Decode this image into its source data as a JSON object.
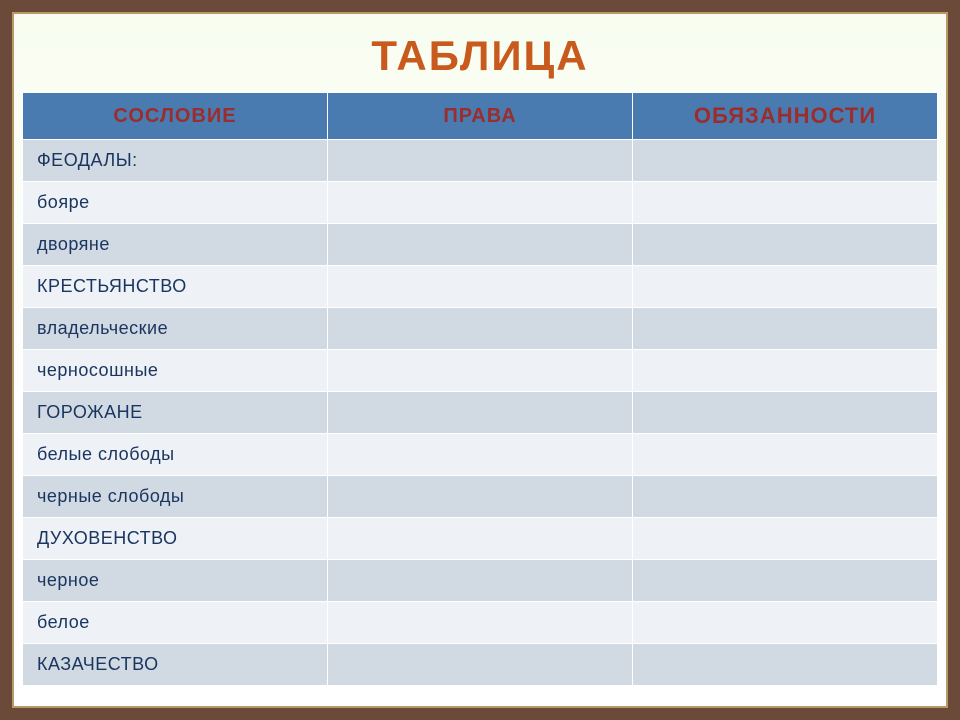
{
  "title": {
    "text": "ТАБЛИЦА",
    "color": "#c85a1e",
    "fontsize": 42
  },
  "table": {
    "header_bg": "#4a7bb0",
    "header_color_normal": "#9b2d2d",
    "header_color_emphasis": "#9b2d2d",
    "row_odd_bg": "#d1d9e3",
    "row_even_bg": "#eef1f5",
    "text_color": "#1a3660",
    "columns": [
      {
        "label": "СОСЛОВИЕ",
        "emphasis": false
      },
      {
        "label": "ПРАВА",
        "emphasis": false
      },
      {
        "label": "ОБЯЗАННОСТИ",
        "emphasis": true
      }
    ],
    "rows": [
      {
        "cells": [
          "ФЕОДАЛЫ:",
          "",
          ""
        ]
      },
      {
        "cells": [
          "бояре",
          "",
          ""
        ]
      },
      {
        "cells": [
          "дворяне",
          "",
          ""
        ]
      },
      {
        "cells": [
          "КРЕСТЬЯНСТВО",
          "",
          ""
        ]
      },
      {
        "cells": [
          "владельческие",
          "",
          ""
        ]
      },
      {
        "cells": [
          "черносошные",
          "",
          ""
        ]
      },
      {
        "cells": [
          "ГОРОЖАНЕ",
          "",
          ""
        ]
      },
      {
        "cells": [
          "белые слободы",
          "",
          ""
        ]
      },
      {
        "cells": [
          "черные слободы",
          "",
          ""
        ]
      },
      {
        "cells": [
          "ДУХОВЕНСТВО",
          "",
          ""
        ]
      },
      {
        "cells": [
          "черное",
          "",
          ""
        ]
      },
      {
        "cells": [
          "белое",
          "",
          ""
        ]
      },
      {
        "cells": [
          "КАЗАЧЕСТВО",
          "",
          ""
        ]
      }
    ]
  },
  "frame": {
    "outer_color": "#6b4a3a",
    "inner_border": "#b89968"
  }
}
